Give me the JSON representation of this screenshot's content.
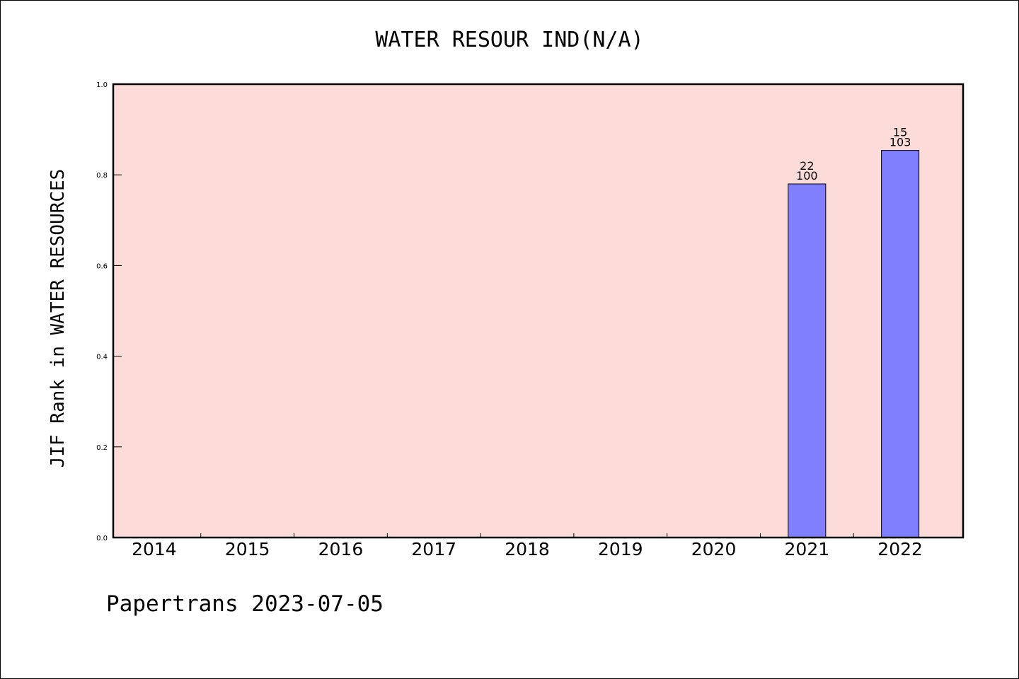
{
  "chart_data": {
    "type": "bar",
    "title": "WATER RESOUR IND(N/A)",
    "xlabel": "",
    "ylabel": "JIF Rank in WATER RESOURCES",
    "categories": [
      "2014",
      "2015",
      "2016",
      "2017",
      "2018",
      "2019",
      "2020",
      "2021",
      "2022"
    ],
    "values": [
      null,
      null,
      null,
      null,
      null,
      null,
      null,
      0.78,
      0.854
    ],
    "bar_labels": [
      null,
      null,
      null,
      null,
      null,
      null,
      null,
      {
        "rank": "22",
        "total": "100"
      },
      {
        "rank": "15",
        "total": "103"
      }
    ],
    "ylim": [
      0,
      1.0
    ],
    "yticks": [
      "0.0",
      "0.2",
      "0.4",
      "0.6",
      "0.8",
      "1.0"
    ],
    "grid": false,
    "colors": {
      "plot_background": "#fddbd8",
      "bar": "#8080ff",
      "axis": "#000000"
    }
  },
  "footer": "Papertrans 2023-07-05"
}
